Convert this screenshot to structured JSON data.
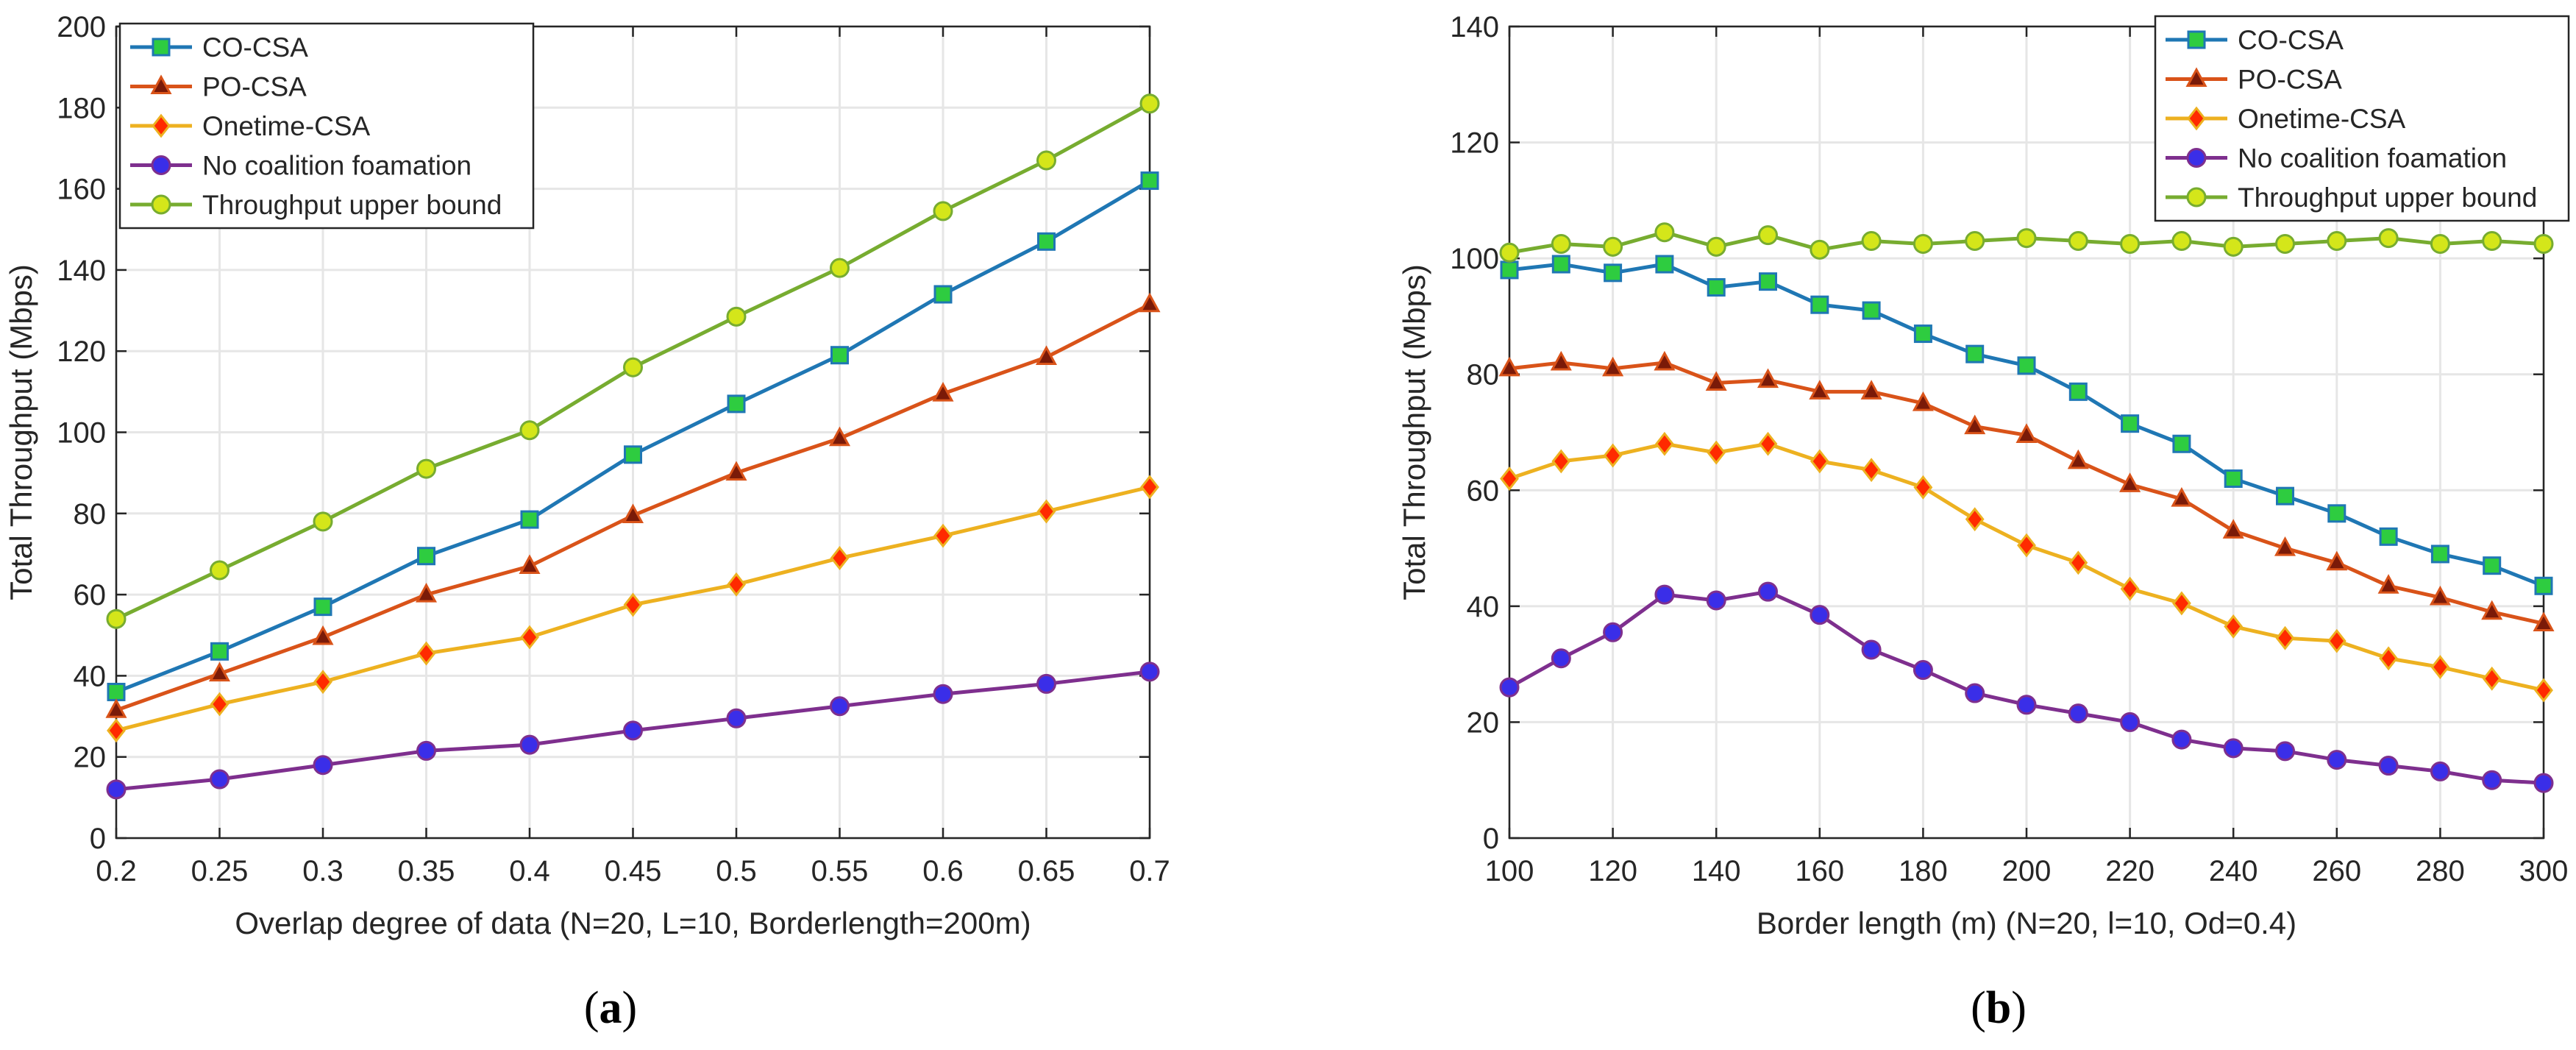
{
  "colors": {
    "co_csa": "#1f77b4",
    "po_csa": "#d95319",
    "onetime_csa": "#edb120",
    "no_coalition": "#7e2f8e",
    "upper_bound": "#77ac30",
    "marker_square_fill": "#2ecc40",
    "marker_triangle_fill": "#7a1a08",
    "marker_diamond_fill": "#ff2a00",
    "marker_circle_fill": "#3a2ee8",
    "marker_ring_fill": "#d4e61a",
    "grid": "#e6e6e6"
  },
  "chart_data": [
    {
      "type": "line",
      "panel_label": "a",
      "xlabel": "Overlap degree of data (N=20, L=10, Borderlength=200m)",
      "ylabel": "Total Throughput (Mbps)",
      "xlim": [
        0.2,
        0.7
      ],
      "ylim": [
        0,
        200
      ],
      "xticks": [
        0.2,
        0.25,
        0.3,
        0.35,
        0.4,
        0.45,
        0.5,
        0.55,
        0.6,
        0.65,
        0.7
      ],
      "xtick_labels": [
        "0.2",
        "0.25",
        "0.3",
        "0.35",
        "0.4",
        "0.45",
        "0.5",
        "0.55",
        "0.6",
        "0.65",
        "0.7"
      ],
      "yticks": [
        0,
        20,
        40,
        60,
        80,
        100,
        120,
        140,
        160,
        180,
        200
      ],
      "ytick_labels": [
        "0",
        "20",
        "40",
        "60",
        "80",
        "100",
        "120",
        "140",
        "160",
        "180",
        "200"
      ],
      "grid": true,
      "legend_position": "top-left",
      "x": [
        0.2,
        0.25,
        0.3,
        0.35,
        0.4,
        0.45,
        0.5,
        0.55,
        0.6,
        0.65,
        0.7
      ],
      "series": [
        {
          "name": "CO-CSA",
          "key": "co_csa",
          "marker": "square",
          "values": [
            36,
            46,
            57,
            69.5,
            78.5,
            94.5,
            107,
            119,
            134,
            147,
            162
          ]
        },
        {
          "name": "PO-CSA",
          "key": "po_csa",
          "marker": "triangle",
          "values": [
            31.5,
            40.5,
            49.5,
            60,
            67,
            79.5,
            90,
            98.5,
            109.5,
            118.5,
            131.5
          ]
        },
        {
          "name": "Onetime-CSA",
          "key": "onetime_csa",
          "marker": "diamond",
          "values": [
            26.5,
            33,
            38.5,
            45.5,
            49.5,
            57.5,
            62.5,
            69,
            74.5,
            80.5,
            86.5
          ]
        },
        {
          "name": "No coalition foamation",
          "key": "no_coalition",
          "marker": "circle",
          "values": [
            12,
            14.5,
            18,
            21.5,
            23,
            26.5,
            29.5,
            32.5,
            35.5,
            38,
            41
          ]
        },
        {
          "name": "Throughput upper bound",
          "key": "upper_bound",
          "marker": "ring",
          "values": [
            54,
            66,
            78,
            91,
            100.5,
            116,
            128.5,
            140.5,
            154.5,
            167,
            181
          ]
        }
      ]
    },
    {
      "type": "line",
      "panel_label": "b",
      "xlabel": "Border length (m) (N=20, l=10, Od=0.4)",
      "ylabel": "Total Throughput (Mbps)",
      "xlim": [
        100,
        300
      ],
      "ylim": [
        0,
        140
      ],
      "xticks": [
        100,
        120,
        140,
        160,
        180,
        200,
        220,
        240,
        260,
        280,
        300
      ],
      "xtick_labels": [
        "100",
        "120",
        "140",
        "160",
        "180",
        "200",
        "220",
        "240",
        "260",
        "280",
        "300"
      ],
      "yticks": [
        0,
        20,
        40,
        60,
        80,
        100,
        120,
        140
      ],
      "ytick_labels": [
        "0",
        "20",
        "40",
        "60",
        "80",
        "100",
        "120",
        "140"
      ],
      "grid": true,
      "legend_position": "top-right",
      "x": [
        100,
        110,
        120,
        130,
        140,
        150,
        160,
        170,
        180,
        190,
        200,
        210,
        220,
        230,
        240,
        250,
        260,
        270,
        280,
        290,
        300
      ],
      "series": [
        {
          "name": "CO-CSA",
          "key": "co_csa",
          "marker": "square",
          "values": [
            98,
            99,
            97.5,
            99,
            95,
            96,
            92,
            91,
            87,
            83.5,
            81.5,
            77,
            71.5,
            68,
            62,
            59,
            56,
            52,
            49,
            47,
            43.5
          ]
        },
        {
          "name": "PO-CSA",
          "key": "po_csa",
          "marker": "triangle",
          "values": [
            81,
            82,
            81,
            82,
            78.5,
            79,
            77,
            77,
            75,
            71,
            69.5,
            65,
            61,
            58.5,
            53,
            50,
            47.5,
            43.5,
            41.5,
            39,
            37
          ]
        },
        {
          "name": "Onetime-CSA",
          "key": "onetime_csa",
          "marker": "diamond",
          "values": [
            62,
            65,
            66,
            68,
            66.5,
            68,
            65,
            63.5,
            60.5,
            55,
            50.5,
            47.5,
            43,
            40.5,
            36.5,
            34.5,
            34,
            31,
            29.5,
            27.5,
            25.5
          ]
        },
        {
          "name": "No coalition foamation",
          "key": "no_coalition",
          "marker": "circle",
          "values": [
            26,
            31,
            35.5,
            42,
            41,
            42.5,
            38.5,
            32.5,
            29,
            25,
            23,
            21.5,
            20,
            17,
            15.5,
            15,
            13.5,
            12.5,
            11.5,
            10,
            9.5
          ]
        },
        {
          "name": "Throughput upper bound",
          "key": "upper_bound",
          "marker": "ring",
          "values": [
            101,
            102.5,
            102,
            104.5,
            102,
            104,
            101.5,
            103,
            102.5,
            103,
            103.5,
            103,
            102.5,
            103,
            102,
            102.5,
            103,
            103.5,
            102.5,
            103,
            102.5
          ]
        }
      ]
    }
  ]
}
